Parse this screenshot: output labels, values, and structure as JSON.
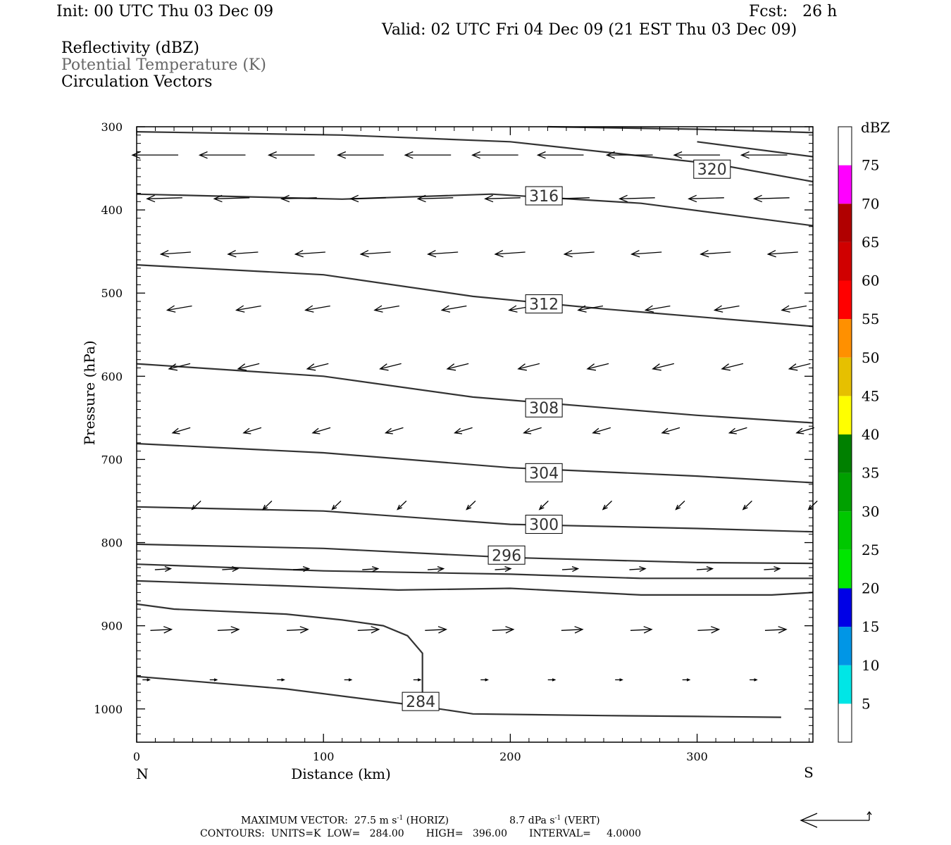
{
  "header": {
    "init": "Init: 00 UTC Thu 03 Dec 09",
    "fcst": "Fcst:   26 h",
    "valid": "Valid: 02 UTC Fri 04 Dec 09 (21 EST Thu 03 Dec 09)",
    "fields": [
      "Reflectivity (dBZ)",
      "Potential Temperature (K)",
      "Circulation Vectors"
    ]
  },
  "colors": {
    "contour": "#333333",
    "axis": "#000000",
    "fields": [
      "#000000",
      "#666666",
      "#000000"
    ]
  },
  "chart_data": {
    "type": "line",
    "subtype": "vertical cross-section",
    "xlabel": "Distance (km)",
    "ylabel": "Pressure (hPa)",
    "xlim": [
      0,
      362
    ],
    "ylim": [
      1040,
      300
    ],
    "y_scale": "linear (pressure, inverted)",
    "xticks": [
      0,
      100,
      200,
      300
    ],
    "yticks": [
      300,
      400,
      500,
      600,
      700,
      800,
      900,
      1000
    ],
    "x_end_labels": {
      "left": "N",
      "right": "S"
    },
    "contours": [
      {
        "label": "320",
        "points": [
          [
            0,
            306
          ],
          [
            110,
            310
          ],
          [
            200,
            318
          ],
          [
            310,
            345
          ],
          [
            362,
            366
          ]
        ]
      },
      {
        "label": "",
        "points": [
          [
            220,
            300
          ],
          [
            300,
            303
          ],
          [
            362,
            307
          ]
        ]
      },
      {
        "label": "",
        "points": [
          [
            300,
            318
          ],
          [
            362,
            336
          ]
        ]
      },
      {
        "label": "316",
        "points": [
          [
            0,
            381
          ],
          [
            110,
            387
          ],
          [
            190,
            381
          ],
          [
            270,
            392
          ],
          [
            362,
            419
          ]
        ]
      },
      {
        "label": "312",
        "points": [
          [
            0,
            466
          ],
          [
            100,
            478
          ],
          [
            180,
            504
          ],
          [
            250,
            519
          ],
          [
            330,
            534
          ],
          [
            362,
            540
          ]
        ]
      },
      {
        "label": "308",
        "points": [
          [
            0,
            585
          ],
          [
            100,
            600
          ],
          [
            180,
            625
          ],
          [
            300,
            647
          ],
          [
            362,
            656
          ]
        ]
      },
      {
        "label": "304",
        "points": [
          [
            0,
            681
          ],
          [
            100,
            692
          ],
          [
            200,
            710
          ],
          [
            300,
            720
          ],
          [
            362,
            728
          ]
        ]
      },
      {
        "label": "300",
        "points": [
          [
            0,
            757
          ],
          [
            100,
            762
          ],
          [
            200,
            778
          ],
          [
            300,
            783
          ],
          [
            362,
            787
          ]
        ]
      },
      {
        "label": "296",
        "points": [
          [
            0,
            802
          ],
          [
            100,
            807
          ],
          [
            200,
            818
          ],
          [
            300,
            824
          ],
          [
            362,
            825
          ]
        ]
      },
      {
        "label": "",
        "points": [
          [
            0,
            826
          ],
          [
            100,
            834
          ],
          [
            200,
            838
          ],
          [
            270,
            843
          ],
          [
            362,
            843
          ]
        ]
      },
      {
        "label": "",
        "points": [
          [
            0,
            846
          ],
          [
            80,
            852
          ],
          [
            140,
            857
          ],
          [
            200,
            855
          ],
          [
            270,
            863
          ],
          [
            340,
            863
          ],
          [
            362,
            860
          ]
        ]
      },
      {
        "label": "284",
        "points": [
          [
            0,
            874
          ],
          [
            20,
            880
          ],
          [
            80,
            886
          ],
          [
            110,
            893
          ],
          [
            132,
            900
          ],
          [
            145,
            912
          ],
          [
            153,
            933
          ],
          [
            153,
            982
          ]
        ]
      },
      {
        "label": "",
        "points": [
          [
            0,
            961
          ],
          [
            80,
            976
          ],
          [
            150,
            996
          ],
          [
            180,
            1006
          ],
          [
            250,
            1008
          ],
          [
            300,
            1009
          ],
          [
            345,
            1010
          ]
        ]
      }
    ],
    "contour_label_positions": [
      {
        "label": "320",
        "x": 308,
        "p": 351
      },
      {
        "label": "316",
        "x": 218,
        "p": 383
      },
      {
        "label": "312",
        "x": 218,
        "p": 513
      },
      {
        "label": "308",
        "x": 218,
        "p": 638
      },
      {
        "label": "304",
        "x": 218,
        "p": 716
      },
      {
        "label": "300",
        "x": 218,
        "p": 778
      },
      {
        "label": "296",
        "x": 198,
        "p": 815
      },
      {
        "label": "284",
        "x": 152,
        "p": 991
      }
    ],
    "vectors": [
      {
        "p": 334,
        "x": [
          10,
          46,
          83,
          120,
          156,
          192,
          227,
          264,
          300,
          336
        ],
        "u": -26,
        "w": 0
      },
      {
        "p": 386,
        "x": [
          15,
          51,
          87,
          124,
          160,
          196,
          233,
          268,
          305,
          340
        ],
        "u": -20,
        "w": -1
      },
      {
        "p": 452,
        "x": [
          21,
          57,
          93,
          128,
          164,
          200,
          237,
          273,
          310,
          346
        ],
        "u": -17,
        "w": -2
      },
      {
        "p": 518,
        "x": [
          23,
          60,
          97,
          134,
          170,
          206,
          243,
          279,
          316,
          352
        ],
        "u": -14,
        "w": -4
      },
      {
        "p": 588,
        "x": [
          23,
          60,
          97,
          136,
          172,
          210,
          247,
          282,
          319,
          355
        ],
        "u": -12,
        "w": -5
      },
      {
        "p": 665,
        "x": [
          24,
          62,
          99,
          138,
          175,
          212,
          249,
          286,
          322,
          358
        ],
        "u": -10,
        "w": -5
      },
      {
        "p": 755,
        "x": [
          32,
          70,
          107,
          142,
          179,
          218,
          252,
          291,
          327,
          362
        ],
        "u": -5,
        "w": -8
      },
      {
        "p": 832,
        "x": [
          14,
          50,
          88,
          125,
          160,
          196,
          232,
          268,
          304,
          340
        ],
        "u": 9,
        "w": 1
      },
      {
        "p": 905,
        "x": [
          13,
          49,
          86,
          124,
          160,
          196,
          233,
          270,
          306,
          342
        ],
        "u": 12,
        "w": 1
      },
      {
        "p": 965,
        "x": [
          5,
          41,
          77,
          113,
          150,
          186,
          222,
          258,
          294,
          330
        ],
        "u": 4,
        "w": 0
      }
    ],
    "colorbar": {
      "label": "dBZ",
      "levels": [
        5,
        10,
        15,
        20,
        25,
        30,
        35,
        40,
        45,
        50,
        55,
        60,
        65,
        70,
        75
      ],
      "colors": [
        "#00e6e6",
        "#0096e6",
        "#0000e6",
        "#00e600",
        "#00c800",
        "#00a000",
        "#008000",
        "#ffff00",
        "#e6c000",
        "#ff9000",
        "#ff0000",
        "#d00000",
        "#b00000",
        "#ff00ff",
        "#9955cc"
      ]
    },
    "reflectivity_present": false
  },
  "footer": {
    "maxvec": "MAXIMUM VECTOR:  27.5 m s",
    "maxvec_sup": "-1",
    "maxvec_horiz": " (HORIZ)",
    "maxvec_vert": "8.7 dPa s",
    "maxvec_vert_sup": "-1",
    "maxvec_vert_tail": " (VERT)",
    "contours": "CONTOURS:  UNITS=K  LOW=   284.00       HIGH=   396.00       INTERVAL=     4.0000"
  }
}
